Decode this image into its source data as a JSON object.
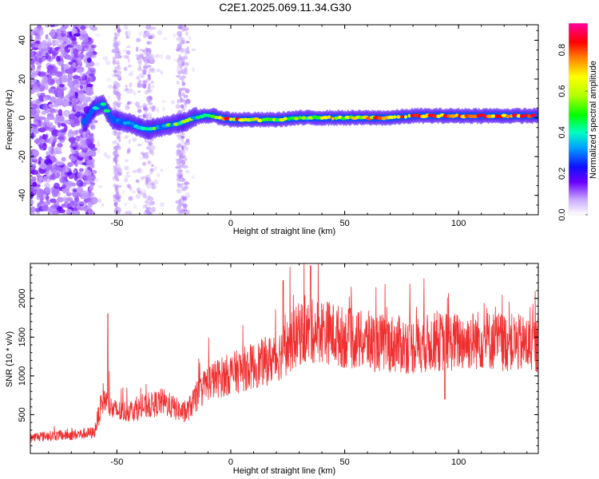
{
  "title": "C2E1.2025.069.11.34.G30",
  "chart_data": [
    {
      "type": "heatmap",
      "xlabel": "Height of straight line (km)",
      "ylabel": "Frequency (Hz)",
      "xlim": [
        -88,
        135
      ],
      "ylim": [
        -50,
        48
      ],
      "xticks": [
        -50,
        0,
        50,
        100
      ],
      "yticks": [
        -40,
        -20,
        0,
        20,
        40
      ],
      "colorbar": {
        "label": "Normalized spectral amplitude",
        "range": [
          0.0,
          0.93
        ],
        "ticks": [
          0.0,
          0.2,
          0.4,
          0.6,
          0.8
        ]
      },
      "ridge": {
        "x": [
          -64,
          -60,
          -56,
          -52,
          -48,
          -44,
          -40,
          -36,
          -32,
          -28,
          -24,
          -20,
          -16,
          -12,
          -8,
          -4,
          0,
          10,
          20,
          30,
          40,
          50,
          60,
          70,
          80,
          90,
          100,
          110,
          120,
          130,
          135
        ],
        "y": [
          -2,
          5,
          7,
          -1,
          -2,
          -3,
          -5,
          -6,
          -5,
          -4,
          -3,
          -2,
          0,
          1,
          1,
          0,
          -1,
          -1,
          -1,
          0,
          0,
          0,
          0,
          0,
          1,
          1,
          1,
          1,
          1,
          1,
          1
        ],
        "intensity": [
          0.35,
          0.35,
          0.35,
          0.4,
          0.4,
          0.4,
          0.45,
          0.45,
          0.45,
          0.45,
          0.45,
          0.5,
          0.5,
          0.55,
          0.6,
          0.7,
          0.8,
          0.75,
          0.65,
          0.6,
          0.65,
          0.7,
          0.75,
          0.8,
          0.85,
          0.85,
          0.9,
          0.9,
          0.85,
          0.85,
          0.85
        ]
      }
    },
    {
      "type": "line",
      "xlabel": "Height of straight line (km)",
      "ylabel": "SNR (10 * v/v)",
      "xlim": [
        -88,
        135
      ],
      "ylim": [
        0,
        2450
      ],
      "xticks": [
        -50,
        0,
        50,
        100
      ],
      "yticks": [
        500,
        1000,
        1500,
        2000
      ],
      "color": "#f03030",
      "envelope": {
        "x": [
          -88,
          -80,
          -70,
          -60,
          -56,
          -52,
          -48,
          -40,
          -30,
          -20,
          -10,
          0,
          10,
          20,
          30,
          40,
          50,
          60,
          70,
          80,
          90,
          100,
          110,
          120,
          135
        ],
        "y": [
          200,
          220,
          230,
          260,
          700,
          550,
          520,
          560,
          650,
          500,
          900,
          1000,
          1100,
          1200,
          1500,
          1550,
          1450,
          1400,
          1380,
          1350,
          1400,
          1400,
          1430,
          1400,
          1350
        ]
      },
      "spikes": [
        {
          "x": -54,
          "y": 1800
        },
        {
          "x": 23,
          "y": 2230
        },
        {
          "x": 35,
          "y": 2420
        },
        {
          "x": 94,
          "y": 700
        }
      ]
    }
  ]
}
